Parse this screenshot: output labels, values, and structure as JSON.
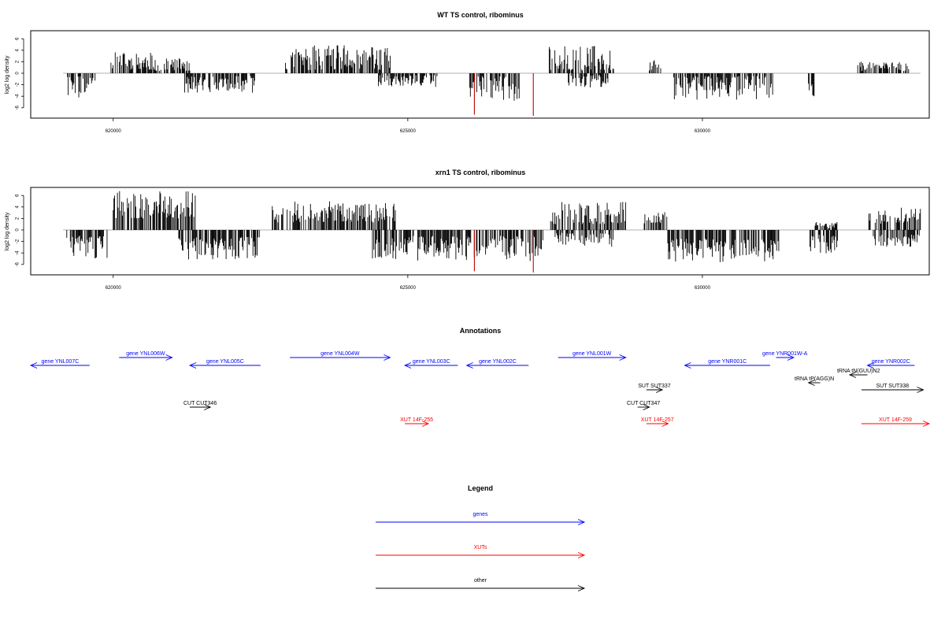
{
  "chart_data": [
    {
      "type": "bar",
      "title": "WT TS control, ribominus",
      "xlabel": "",
      "ylabel": "log2 log density",
      "xlim": [
        618600,
        633850
      ],
      "ylim": [
        -7.5,
        7.5
      ],
      "xticks": [
        620000,
        625000,
        630000
      ],
      "xtick_labels": [
        "620000",
        "625000",
        "630000"
      ],
      "yticks": [
        6,
        4,
        2,
        0,
        -2,
        -4,
        -6
      ],
      "ytick_labels": [
        "6",
        "4",
        "2",
        "0",
        "-2",
        "-4",
        "-6"
      ],
      "grid": false,
      "baseline": {
        "x": [
          619150,
          633700
        ]
      },
      "segments": [
        {
          "strand": "minus",
          "start": 619200,
          "end": 619700,
          "min": 0.5,
          "max": 4.6
        },
        {
          "strand": "plus",
          "start": 619950,
          "end": 620700,
          "min": 0.5,
          "max": 3.7
        },
        {
          "strand": "plus",
          "start": 620700,
          "end": 621300,
          "min": 0.4,
          "max": 2.6
        },
        {
          "strand": "minus",
          "start": 621200,
          "end": 622400,
          "min": 0.5,
          "max": 3.4
        },
        {
          "strand": "plus",
          "start": 622900,
          "end": 624700,
          "min": 0.5,
          "max": 4.9
        },
        {
          "strand": "minus",
          "start": 624500,
          "end": 625500,
          "min": 0.3,
          "max": 2.5
        },
        {
          "strand": "minus",
          "start": 626050,
          "end": 626900,
          "min": 0.5,
          "max": 4.8
        },
        {
          "strand": "plus",
          "start": 627400,
          "end": 628500,
          "min": 0.5,
          "max": 4.8
        },
        {
          "strand": "minus",
          "start": 627700,
          "end": 628400,
          "min": 0.3,
          "max": 2.6
        },
        {
          "strand": "plus",
          "start": 629100,
          "end": 629300,
          "min": 0.5,
          "max": 2.3
        },
        {
          "strand": "minus",
          "start": 629500,
          "end": 631200,
          "min": 0.5,
          "max": 4.6
        },
        {
          "strand": "minus",
          "start": 631800,
          "end": 631900,
          "min": 1.8,
          "max": 4.5
        },
        {
          "strand": "plus",
          "start": 632600,
          "end": 633500,
          "min": 0.4,
          "max": 2.0
        }
      ],
      "highlights": [
        {
          "x": 626130,
          "y": -7.2
        },
        {
          "x": 627130,
          "y": -7.4
        }
      ]
    },
    {
      "type": "bar",
      "title": "xrn1 TS control, ribominus",
      "xlabel": "",
      "ylabel": "log2 log density",
      "xlim": [
        618600,
        633850
      ],
      "ylim": [
        -7.5,
        7.5
      ],
      "xticks": [
        620000,
        625000,
        630000
      ],
      "xtick_labels": [
        "620000",
        "625000",
        "630000"
      ],
      "yticks": [
        6,
        4,
        2,
        0,
        -2,
        -4,
        -6
      ],
      "ytick_labels": [
        "6",
        "4",
        "2",
        "0",
        "-2",
        "-4",
        "-6"
      ],
      "grid": false,
      "baseline": {
        "x": [
          619150,
          633700
        ]
      },
      "segments": [
        {
          "strand": "minus",
          "start": 619200,
          "end": 619900,
          "min": 1.0,
          "max": 5.2
        },
        {
          "strand": "plus",
          "start": 620000,
          "end": 621400,
          "min": 2.0,
          "max": 6.8
        },
        {
          "strand": "minus",
          "start": 621100,
          "end": 622500,
          "min": 1.2,
          "max": 5.2
        },
        {
          "strand": "plus",
          "start": 622700,
          "end": 624800,
          "min": 1.3,
          "max": 5.0
        },
        {
          "strand": "minus",
          "start": 624400,
          "end": 627300,
          "min": 1.0,
          "max": 5.4
        },
        {
          "strand": "plus",
          "start": 627400,
          "end": 628700,
          "min": 1.0,
          "max": 5.0
        },
        {
          "strand": "minus",
          "start": 627500,
          "end": 628500,
          "min": 0.5,
          "max": 3.0
        },
        {
          "strand": "plus",
          "start": 629000,
          "end": 629400,
          "min": 1.0,
          "max": 3.2
        },
        {
          "strand": "minus",
          "start": 629400,
          "end": 631300,
          "min": 1.5,
          "max": 5.6
        },
        {
          "strand": "plus",
          "start": 631900,
          "end": 632300,
          "min": 0.3,
          "max": 1.5
        },
        {
          "strand": "minus",
          "start": 631800,
          "end": 632300,
          "min": 0.8,
          "max": 4.5
        },
        {
          "strand": "plus",
          "start": 632800,
          "end": 633700,
          "min": 1.0,
          "max": 4.0
        },
        {
          "strand": "minus",
          "start": 632900,
          "end": 633700,
          "min": 0.8,
          "max": 3.0
        }
      ],
      "highlights": [
        {
          "x": 626130,
          "y": -7.2
        },
        {
          "x": 627130,
          "y": -7.4
        }
      ]
    }
  ],
  "annotations": {
    "title": "Annotations",
    "features": [
      {
        "label": "gene YNL007C",
        "type": "gene",
        "strand": "minus",
        "start": 618600,
        "end": 619600,
        "row": 1
      },
      {
        "label": "gene YNL006W",
        "type": "gene",
        "strand": "plus",
        "start": 620100,
        "end": 621000,
        "row": 0
      },
      {
        "label": "gene YNL005C",
        "type": "gene",
        "strand": "minus",
        "start": 621300,
        "end": 622500,
        "row": 1
      },
      {
        "label": "gene YNL004W",
        "type": "gene",
        "strand": "plus",
        "start": 623000,
        "end": 624700,
        "row": 0
      },
      {
        "label": "gene YNL003C",
        "type": "gene",
        "strand": "minus",
        "start": 624950,
        "end": 625850,
        "row": 1
      },
      {
        "label": "gene YNL002C",
        "type": "gene",
        "strand": "minus",
        "start": 626000,
        "end": 627050,
        "row": 1
      },
      {
        "label": "gene YNL001W",
        "type": "gene",
        "strand": "plus",
        "start": 627550,
        "end": 628700,
        "row": 0
      },
      {
        "label": "gene YNR001C",
        "type": "gene",
        "strand": "minus",
        "start": 629700,
        "end": 631150,
        "row": 1
      },
      {
        "label": "gene YNR001W-A",
        "type": "gene",
        "strand": "plus",
        "start": 631250,
        "end": 631550,
        "row": 0
      },
      {
        "label": "gene YNR002C",
        "type": "gene",
        "strand": "minus",
        "start": 632800,
        "end": 633600,
        "row": 1
      },
      {
        "label": "tRNA tN(GUU)N2",
        "type": "other",
        "strand": "minus",
        "start": 632500,
        "end": 632800,
        "row": 2
      },
      {
        "label": "tRNA tP(AGG)N",
        "type": "other",
        "strand": "minus",
        "start": 631800,
        "end": 632000,
        "row": 3
      },
      {
        "label": "SUT SUT337",
        "type": "other",
        "strand": "plus",
        "start": 629050,
        "end": 629320,
        "row": 4
      },
      {
        "label": "SUT SUT338",
        "type": "other",
        "strand": "plus",
        "start": 632700,
        "end": 633750,
        "row": 4
      },
      {
        "label": "CUT CUT346",
        "type": "other",
        "strand": "plus",
        "start": 621300,
        "end": 621650,
        "row": 5
      },
      {
        "label": "CUT CUT347",
        "type": "other",
        "strand": "plus",
        "start": 628900,
        "end": 629100,
        "row": 5
      },
      {
        "label": "XUT 14F-255",
        "type": "xut",
        "strand": "plus",
        "start": 624950,
        "end": 625350,
        "row": 6
      },
      {
        "label": "XUT 14F-257",
        "type": "xut",
        "strand": "plus",
        "start": 629050,
        "end": 629420,
        "row": 6
      },
      {
        "label": "XUT 14F-259",
        "type": "xut",
        "strand": "plus",
        "start": 632700,
        "end": 633950,
        "row": 6
      }
    ]
  },
  "legend": {
    "title": "Legend",
    "entries": [
      {
        "label": "genes",
        "type": "gene"
      },
      {
        "label": "XUTs",
        "type": "xut"
      },
      {
        "label": "other",
        "type": "other"
      }
    ]
  },
  "colors": {
    "gene": "#0000ff",
    "xut": "#ff0000",
    "other": "#000000",
    "bars": "#000000",
    "highlight": "#c00000",
    "baseline": "#999999"
  }
}
